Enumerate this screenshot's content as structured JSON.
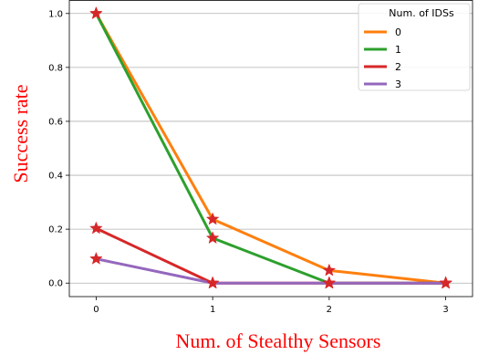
{
  "chart_data": {
    "type": "line",
    "xlabel": "Num. of Stealthy Sensors",
    "ylabel": "Success rate",
    "label_color": "#ff0000",
    "x": [
      0,
      1,
      2,
      3
    ],
    "xticks": [
      "0",
      "1",
      "2",
      "3"
    ],
    "yticks": [
      "0.0",
      "0.2",
      "0.4",
      "0.6",
      "0.8",
      "1.0"
    ],
    "xlim": [
      -0.23,
      3.23
    ],
    "ylim": [
      -0.05,
      1.05
    ],
    "grid": "horizontal",
    "legend": {
      "title": "Num. of IDSs",
      "placement": "top-right"
    },
    "marker": "star",
    "marker_color": "#d62728",
    "series": [
      {
        "name": "0",
        "color": "#ff7f0e",
        "values": [
          1.0,
          0.237,
          0.047,
          0.0
        ]
      },
      {
        "name": "1",
        "color": "#2ca02c",
        "values": [
          1.0,
          0.167,
          0.0,
          0.0
        ]
      },
      {
        "name": "2",
        "color": "#d62728",
        "values": [
          0.203,
          0.0,
          0.0,
          0.0
        ]
      },
      {
        "name": "3",
        "color": "#9467bd",
        "values": [
          0.09,
          0.0,
          0.0,
          0.0
        ]
      }
    ]
  }
}
